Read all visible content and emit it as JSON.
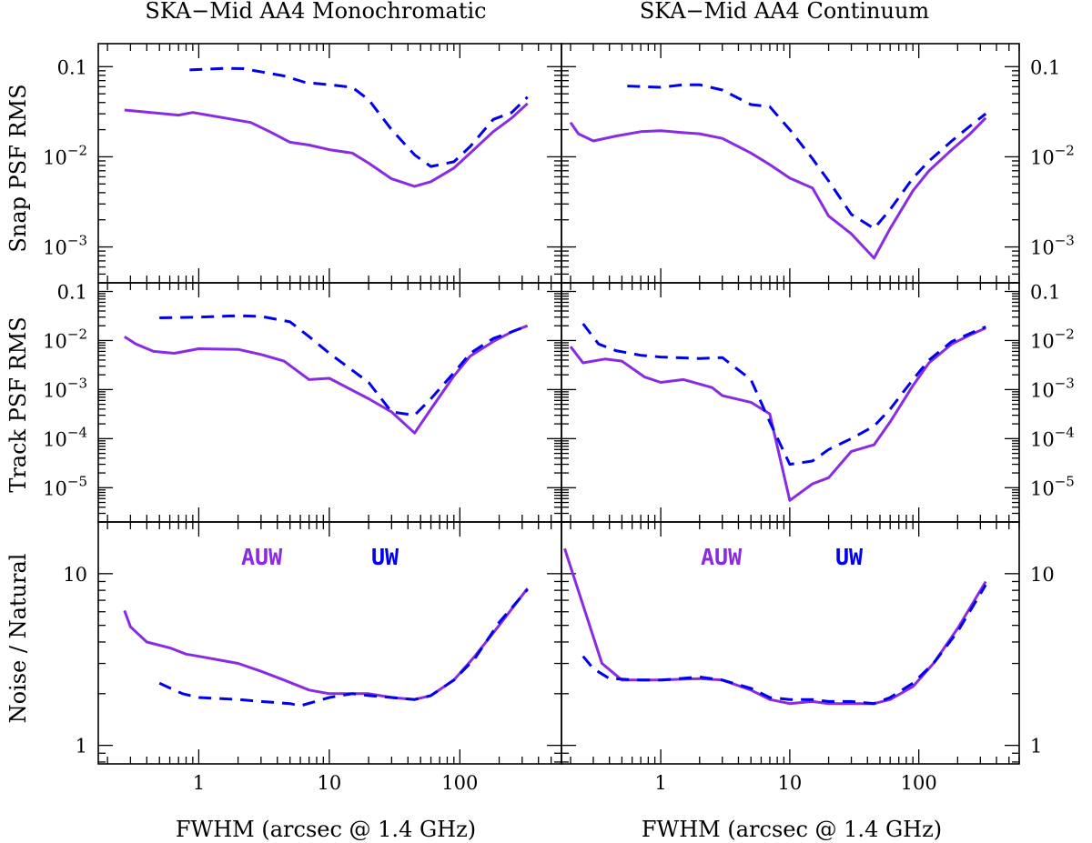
{
  "figure": {
    "titles": [
      "SKA−Mid AA4 Monochromatic",
      "SKA−Mid AA4 Continuum"
    ],
    "ylabels": [
      "Snap PSF RMS",
      "Track PSF RMS",
      "Noise / Natural"
    ],
    "xlabel": "FWHM (arcsec @ 1.4 GHz)",
    "legend": {
      "auw": "AUW",
      "uw": "UW"
    },
    "colors": {
      "auw": "#8a2be2",
      "uw": "#0000ee"
    }
  },
  "chart_data": {
    "type": "line",
    "x_scale": "log",
    "y_scale": "log",
    "xlim": [
      0.17,
      600
    ],
    "xticks": [
      {
        "v": 1,
        "label": "1"
      },
      {
        "v": 10,
        "label": "10"
      },
      {
        "v": 100,
        "label": "100"
      }
    ],
    "rows": [
      {
        "ylabel": "Snap PSF RMS",
        "ylim": [
          0.0004,
          0.18
        ],
        "yticks": [
          {
            "v": 0.1,
            "base": "0.1",
            "exp": ""
          },
          {
            "v": 0.01,
            "base": "10",
            "exp": "−2"
          },
          {
            "v": 0.001,
            "base": "10",
            "exp": "−3"
          }
        ]
      },
      {
        "ylabel": "Track PSF RMS",
        "ylim": [
          2e-06,
          0.15
        ],
        "yticks": [
          {
            "v": 0.1,
            "base": "0.1",
            "exp": ""
          },
          {
            "v": 0.01,
            "base": "10",
            "exp": "−2"
          },
          {
            "v": 0.001,
            "base": "10",
            "exp": "−3"
          },
          {
            "v": 0.0001,
            "base": "10",
            "exp": "−4"
          },
          {
            "v": 1e-05,
            "base": "10",
            "exp": "−5"
          }
        ]
      },
      {
        "ylabel": "Noise / Natural",
        "ylim": [
          0.78,
          20
        ],
        "yticks": [
          {
            "v": 10,
            "base": "10",
            "exp": ""
          },
          {
            "v": 1,
            "base": "1",
            "exp": ""
          }
        ]
      }
    ],
    "panels": [
      {
        "row": 0,
        "col": 0,
        "title": "SKA−Mid AA4 Monochromatic",
        "series": [
          {
            "name": "AUW",
            "x": [
              0.27,
              0.7,
              0.9,
              2.5,
              3.5,
              5,
              7,
              10,
              15,
              20,
              30,
              45,
              60,
              90,
              120,
              180,
              250,
              330
            ],
            "y": [
              0.033,
              0.029,
              0.031,
              0.024,
              0.019,
              0.0145,
              0.0135,
              0.012,
              0.011,
              0.0085,
              0.0057,
              0.0047,
              0.0053,
              0.0075,
              0.011,
              0.019,
              0.027,
              0.039
            ]
          },
          {
            "name": "UW",
            "x": [
              0.85,
              1.6,
              2.2,
              4.5,
              6.5,
              10,
              15,
              20,
              30,
              45,
              60,
              90,
              120,
              180,
              250,
              330
            ],
            "y": [
              0.092,
              0.096,
              0.095,
              0.079,
              0.067,
              0.063,
              0.059,
              0.043,
              0.02,
              0.0105,
              0.0078,
              0.0088,
              0.013,
              0.026,
              0.031,
              0.046
            ]
          }
        ]
      },
      {
        "row": 0,
        "col": 1,
        "title": "SKA−Mid AA4 Continuum",
        "series": [
          {
            "name": "AUW",
            "x": [
              0.2,
              0.23,
              0.3,
              0.45,
              0.7,
              1,
              1.5,
              2,
              3,
              5,
              7,
              10,
              15,
              20,
              30,
              45,
              60,
              90,
              120,
              180,
              250,
              330
            ],
            "y": [
              0.024,
              0.018,
              0.015,
              0.017,
              0.019,
              0.0195,
              0.0185,
              0.018,
              0.016,
              0.011,
              0.0082,
              0.0058,
              0.0045,
              0.0022,
              0.0014,
              0.00075,
              0.0016,
              0.0042,
              0.007,
              0.012,
              0.018,
              0.027
            ]
          },
          {
            "name": "UW",
            "x": [
              0.55,
              1,
              1.5,
              2,
              3,
              5,
              7,
              10,
              15,
              20,
              30,
              45,
              60,
              90,
              120,
              180,
              250,
              330
            ],
            "y": [
              0.061,
              0.059,
              0.063,
              0.063,
              0.055,
              0.038,
              0.036,
              0.02,
              0.0095,
              0.0054,
              0.0023,
              0.0016,
              0.0026,
              0.0058,
              0.009,
              0.015,
              0.022,
              0.03
            ]
          }
        ]
      },
      {
        "row": 1,
        "col": 0,
        "series": [
          {
            "name": "AUW",
            "x": [
              0.27,
              0.33,
              0.45,
              0.65,
              1,
              2,
              3,
              4.5,
              7,
              10,
              20,
              30,
              45,
              60,
              90,
              120,
              180,
              250,
              330
            ],
            "y": [
              0.012,
              0.0085,
              0.006,
              0.0055,
              0.0068,
              0.0066,
              0.0052,
              0.0038,
              0.0016,
              0.0017,
              0.00065,
              0.00035,
              0.00013,
              0.0004,
              0.0019,
              0.0048,
              0.0095,
              0.015,
              0.02
            ]
          },
          {
            "name": "UW",
            "x": [
              0.5,
              1,
              2,
              3,
              5,
              7,
              10,
              20,
              30,
              45,
              60,
              90,
              120,
              180,
              250,
              330
            ],
            "y": [
              0.029,
              0.03,
              0.032,
              0.031,
              0.024,
              0.012,
              0.0055,
              0.0014,
              0.00035,
              0.0003,
              0.00065,
              0.0022,
              0.0055,
              0.011,
              0.015,
              0.02
            ]
          }
        ]
      },
      {
        "row": 1,
        "col": 1,
        "series": [
          {
            "name": "AUW",
            "x": [
              0.2,
              0.25,
              0.37,
              0.5,
              0.75,
              1,
              1.5,
              2.5,
              3,
              5,
              7,
              10,
              15,
              20,
              30,
              45,
              60,
              90,
              120,
              180,
              250,
              330
            ],
            "y": [
              0.0075,
              0.0035,
              0.0042,
              0.0038,
              0.0018,
              0.0014,
              0.0016,
              0.0011,
              0.00075,
              0.00055,
              0.00032,
              5.5e-06,
              1.2e-05,
              1.6e-05,
              5.5e-05,
              7.5e-05,
              0.00022,
              0.0012,
              0.0035,
              0.0085,
              0.013,
              0.018
            ]
          },
          {
            "name": "UW",
            "x": [
              0.25,
              0.33,
              0.45,
              0.7,
              1,
              2,
              3,
              5,
              7,
              10,
              15,
              20,
              30,
              45,
              60,
              90,
              120,
              180,
              250,
              330
            ],
            "y": [
              0.022,
              0.0085,
              0.0062,
              0.005,
              0.0046,
              0.0043,
              0.0045,
              0.0016,
              0.00022,
              3e-05,
              3.5e-05,
              6e-05,
              0.0001,
              0.00018,
              0.0004,
              0.0016,
              0.004,
              0.0095,
              0.014,
              0.019
            ]
          }
        ]
      },
      {
        "row": 2,
        "col": 0,
        "series": [
          {
            "name": "AUW",
            "x": [
              0.27,
              0.3,
              0.4,
              0.6,
              0.8,
              1,
              2,
              3,
              4.5,
              7,
              10,
              20,
              30,
              45,
              60,
              90,
              130,
              200,
              330
            ],
            "y": [
              6.1,
              4.9,
              4.0,
              3.7,
              3.4,
              3.3,
              3.0,
              2.7,
              2.4,
              2.1,
              2.0,
              2.0,
              1.9,
              1.85,
              1.95,
              2.4,
              3.3,
              5.0,
              8.2
            ]
          },
          {
            "name": "UW",
            "x": [
              0.5,
              0.75,
              1,
              2,
              3,
              5,
              6,
              10,
              15,
              20,
              30,
              45,
              60,
              90,
              130,
              200,
              330
            ],
            "y": [
              2.3,
              2.0,
              1.9,
              1.85,
              1.8,
              1.75,
              1.7,
              1.9,
              2.0,
              1.95,
              1.9,
              1.85,
              1.95,
              2.4,
              3.2,
              5.2,
              8.1
            ]
          }
        ]
      },
      {
        "row": 2,
        "col": 1,
        "series": [
          {
            "name": "AUW",
            "x": [
              0.18,
              0.35,
              0.5,
              1,
              2,
              3,
              5,
              7,
              10,
              15,
              20,
              30,
              45,
              60,
              90,
              130,
              200,
              330
            ],
            "y": [
              14,
              3.0,
              2.4,
              2.4,
              2.45,
              2.4,
              2.1,
              1.85,
              1.75,
              1.8,
              1.75,
              1.75,
              1.75,
              1.85,
              2.2,
              3.0,
              4.8,
              9.0
            ]
          },
          {
            "name": "UW",
            "x": [
              0.25,
              0.3,
              0.4,
              0.7,
              1,
              2,
              3,
              5,
              7,
              10,
              15,
              20,
              30,
              45,
              60,
              90,
              130,
              200,
              330
            ],
            "y": [
              3.3,
              2.8,
              2.45,
              2.4,
              2.4,
              2.5,
              2.4,
              2.15,
              1.9,
              1.85,
              1.85,
              1.8,
              1.8,
              1.75,
              1.9,
              2.3,
              3.0,
              4.6,
              8.6
            ]
          }
        ]
      }
    ]
  }
}
